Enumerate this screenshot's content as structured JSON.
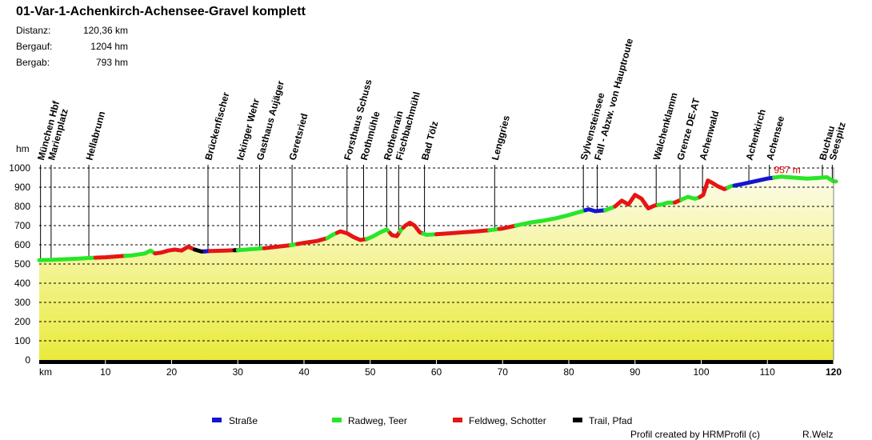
{
  "chart_data": {
    "type": "area",
    "title": "01-Var-1-Achenkirch-Achensee-Gravel komplett",
    "stats": [
      {
        "label": "Distanz:",
        "value": "120,36 km"
      },
      {
        "label": "Bergauf:",
        "value": "1204 hm"
      },
      {
        "label": "Bergab:",
        "value": "793 hm"
      }
    ],
    "ylabel": "hm",
    "xlabel": "km",
    "ylim": [
      0,
      1000
    ],
    "xlim": [
      0,
      120
    ],
    "yticks": [
      0,
      100,
      200,
      300,
      400,
      500,
      600,
      700,
      800,
      900,
      1000
    ],
    "xticks": [
      10,
      20,
      30,
      40,
      50,
      60,
      70,
      80,
      90,
      100,
      110,
      120
    ],
    "max_label": "957 m",
    "max_km": 117.5,
    "max_value": 957,
    "profile": {
      "x": [
        0,
        2,
        4,
        6,
        8,
        10,
        12,
        14,
        16,
        16.8,
        17.5,
        18.5,
        19.5,
        20.5,
        21.5,
        22,
        22.5,
        23.5,
        24.5,
        26,
        28,
        30,
        32,
        34,
        36,
        38,
        40,
        42,
        43.5,
        44.5,
        45.5,
        46.5,
        47.5,
        48.5,
        49.5,
        50.5,
        51.5,
        52.5,
        53.3,
        54,
        54.7,
        55.3,
        56,
        56.7,
        57.5,
        58.5,
        60,
        62,
        64,
        66,
        68,
        70,
        72,
        74,
        76,
        78,
        80,
        82,
        83,
        84,
        85.5,
        87,
        88,
        89,
        90,
        91,
        92,
        93,
        94,
        95,
        96,
        97,
        98,
        99,
        99.6,
        100.3,
        101,
        101.8,
        102.5,
        103.5,
        104.5,
        106,
        108,
        110,
        112,
        114,
        116,
        117.5,
        119,
        120
      ],
      "y": [
        520,
        522,
        525,
        528,
        532,
        535,
        540,
        545,
        555,
        570,
        555,
        560,
        570,
        575,
        570,
        580,
        590,
        575,
        565,
        568,
        570,
        572,
        577,
        582,
        590,
        598,
        610,
        620,
        635,
        655,
        670,
        660,
        640,
        625,
        630,
        645,
        665,
        680,
        650,
        645,
        680,
        700,
        715,
        700,
        665,
        652,
        655,
        660,
        665,
        670,
        676,
        685,
        700,
        715,
        725,
        738,
        755,
        775,
        785,
        775,
        780,
        800,
        830,
        810,
        860,
        840,
        790,
        805,
        810,
        820,
        820,
        835,
        850,
        840,
        845,
        860,
        935,
        920,
        905,
        890,
        905,
        915,
        930,
        945,
        955,
        950,
        945,
        948,
        952,
        930
      ]
    },
    "segments": [
      {
        "from": 0,
        "to": 8.5,
        "surface": "Radweg, Teer"
      },
      {
        "from": 8.5,
        "to": 13,
        "surface": "Feldweg, Schotter"
      },
      {
        "from": 13,
        "to": 17.5,
        "surface": "Radweg, Teer"
      },
      {
        "from": 17.5,
        "to": 23.5,
        "surface": "Feldweg, Schotter"
      },
      {
        "from": 23.5,
        "to": 25,
        "surface": "Trail, Pfad"
      },
      {
        "from": 25,
        "to": 25.8,
        "surface": "Straße"
      },
      {
        "from": 25.8,
        "to": 29.5,
        "surface": "Feldweg, Schotter"
      },
      {
        "from": 29.5,
        "to": 30,
        "surface": "Trail, Pfad"
      },
      {
        "from": 30,
        "to": 34,
        "surface": "Radweg, Teer"
      },
      {
        "from": 34,
        "to": 38,
        "surface": "Feldweg, Schotter"
      },
      {
        "from": 38,
        "to": 39,
        "surface": "Radweg, Teer"
      },
      {
        "from": 39,
        "to": 43.5,
        "surface": "Feldweg, Schotter"
      },
      {
        "from": 43.5,
        "to": 45,
        "surface": "Radweg, Teer"
      },
      {
        "from": 45,
        "to": 49.5,
        "surface": "Feldweg, Schotter"
      },
      {
        "from": 49.5,
        "to": 53,
        "surface": "Radweg, Teer"
      },
      {
        "from": 53,
        "to": 54.5,
        "surface": "Feldweg, Schotter"
      },
      {
        "from": 54.5,
        "to": 55,
        "surface": "Radweg, Teer"
      },
      {
        "from": 55,
        "to": 58,
        "surface": "Feldweg, Schotter"
      },
      {
        "from": 58,
        "to": 60,
        "surface": "Radweg, Teer"
      },
      {
        "from": 60,
        "to": 68,
        "surface": "Feldweg, Schotter"
      },
      {
        "from": 68,
        "to": 69.5,
        "surface": "Radweg, Teer"
      },
      {
        "from": 69.5,
        "to": 72,
        "surface": "Feldweg, Schotter"
      },
      {
        "from": 72,
        "to": 82.5,
        "surface": "Radweg, Teer"
      },
      {
        "from": 82.5,
        "to": 85.5,
        "surface": "Straße"
      },
      {
        "from": 85.5,
        "to": 87,
        "surface": "Radweg, Teer"
      },
      {
        "from": 87,
        "to": 93.5,
        "surface": "Feldweg, Schotter"
      },
      {
        "from": 93.5,
        "to": 96,
        "surface": "Radweg, Teer"
      },
      {
        "from": 96,
        "to": 97,
        "surface": "Feldweg, Schotter"
      },
      {
        "from": 97,
        "to": 99.8,
        "surface": "Radweg, Teer"
      },
      {
        "from": 99.8,
        "to": 104,
        "surface": "Feldweg, Schotter"
      },
      {
        "from": 104,
        "to": 105,
        "surface": "Radweg, Teer"
      },
      {
        "from": 105,
        "to": 111,
        "surface": "Straße"
      },
      {
        "from": 111,
        "to": 120.36,
        "surface": "Radweg, Teer"
      }
    ],
    "waypoints": [
      {
        "name": "München Hbf",
        "km": 0.2
      },
      {
        "name": "Marienplatz",
        "km": 1.8
      },
      {
        "name": "Hellabrunn",
        "km": 7.5
      },
      {
        "name": "Brückenfischer",
        "km": 25.5
      },
      {
        "name": "Ickinger Wehr",
        "km": 30.3
      },
      {
        "name": "Gasthaus Aujäger",
        "km": 33.3
      },
      {
        "name": "Geretsried",
        "km": 38.2
      },
      {
        "name": "Forsthaus Schuss",
        "km": 46.5
      },
      {
        "name": "Rothmühle",
        "km": 49
      },
      {
        "name": "Rothenrain",
        "km": 52.5
      },
      {
        "name": "Fischbachmühl",
        "km": 54.3
      },
      {
        "name": "Bad Tölz",
        "km": 58.2
      },
      {
        "name": "Lenggries",
        "km": 68.8
      },
      {
        "name": "Sylvensteinsee",
        "km": 82.2
      },
      {
        "name": "Fall - Abzw. von Hauptroute",
        "km": 84.3
      },
      {
        "name": "Walchenklamm",
        "km": 93.2
      },
      {
        "name": "Grenze DE-AT",
        "km": 96.8
      },
      {
        "name": "Achenwald",
        "km": 100.2
      },
      {
        "name": "Achenkirch",
        "km": 107.2
      },
      {
        "name": "Achensee",
        "km": 110.3
      },
      {
        "name": "Buchau",
        "km": 118.3
      },
      {
        "name": "Seespitz",
        "km": 119.8
      }
    ],
    "legend": [
      {
        "label": "Straße",
        "color": "#1414d2"
      },
      {
        "label": "Radweg, Teer",
        "color": "#28e628"
      },
      {
        "label": "Feldweg, Schotter",
        "color": "#e61414"
      },
      {
        "label": "Trail, Pfad",
        "color": "#000000"
      }
    ],
    "credit_left": "Profil created by HRMProfil (c)",
    "credit_right": "R.Welz"
  }
}
